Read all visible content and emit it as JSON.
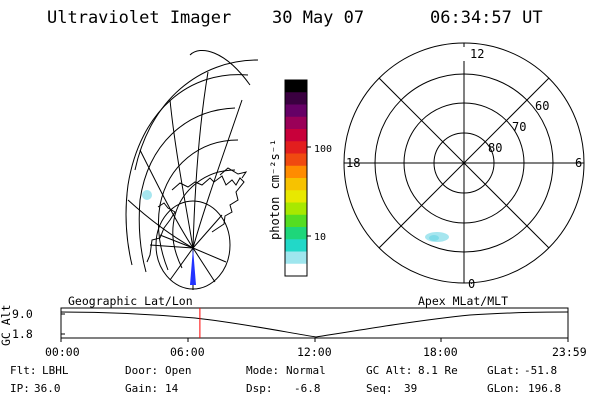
{
  "header": {
    "instrument": "Ultraviolet Imager",
    "date": "30 May 07",
    "time": "06:34:57 UT"
  },
  "colorbar": {
    "unit_label": "photon cm⁻²s⁻¹",
    "ticks": [
      "100",
      "10"
    ],
    "colors": [
      "#000000",
      "#3a0040",
      "#660066",
      "#9a0058",
      "#c8003a",
      "#e21e1e",
      "#f04a10",
      "#ff8c00",
      "#f7c200",
      "#e8e800",
      "#a8e800",
      "#55dd22",
      "#1ed67a",
      "#22d8c8",
      "#9fe6ee",
      "#ffffff"
    ]
  },
  "polar_plot": {
    "mlt_labels": {
      "top": "12",
      "left": "18",
      "right": "6",
      "bottom": "0"
    },
    "lat_labels": [
      "60",
      "70",
      "80"
    ]
  },
  "timeline": {
    "left_title": "Geographic Lat/Lon",
    "right_title": "Apex MLat/MLT",
    "axis_title": "GC Alt",
    "y_ticks": [
      "9.0",
      "1.8"
    ],
    "x_ticks": [
      "00:00",
      "06:00",
      "12:00",
      "18:00",
      "23:59"
    ],
    "current_time_fraction": 0.274,
    "marker_color": "#ff0000"
  },
  "info": {
    "row1": [
      {
        "key": "Flt:",
        "val": "LBHL"
      },
      {
        "key": "Door:",
        "val": "Open"
      },
      {
        "key": "Mode:",
        "val": "Normal"
      },
      {
        "key": "GC Alt:",
        "val": "8.1 Re"
      },
      {
        "key": "GLat:",
        "val": "-51.8"
      }
    ],
    "row2": [
      {
        "key": "IP:",
        "val": "36.0"
      },
      {
        "key": "Gain:",
        "val": "14"
      },
      {
        "key": "Dsp:",
        "val": "-6.8"
      },
      {
        "key": "Seq:",
        "val": "39"
      },
      {
        "key": "GLon:",
        "val": "196.8"
      }
    ]
  }
}
